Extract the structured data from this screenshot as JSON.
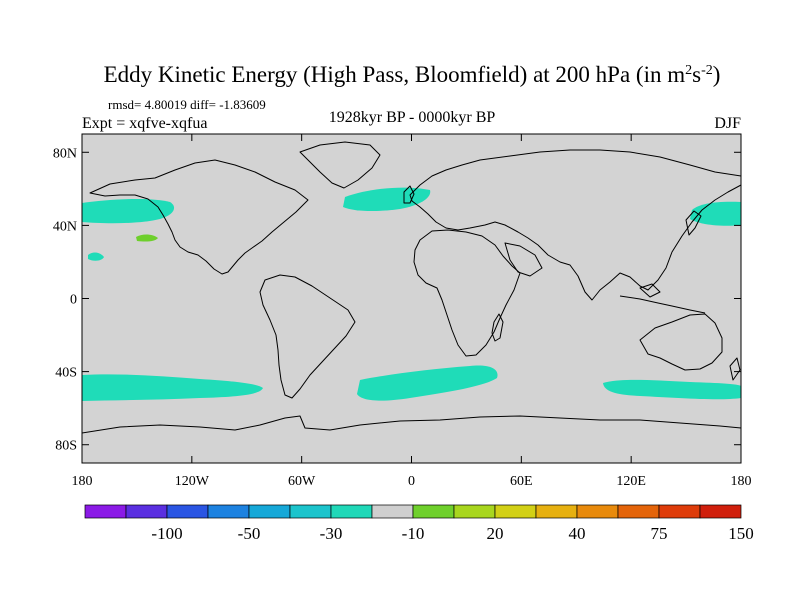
{
  "title": {
    "main": "Eddy Kinetic Energy (High Pass, Bloomfield) at 200 hPa (in m",
    "sup1": "2",
    "mid": "s",
    "sup2": "-2",
    "close": ")"
  },
  "stats": "rmsd= 4.80019 diff= -1.83609",
  "expt": "Expt = xqfve-xqfua",
  "period": "1928kyr BP - 0000kyr BP",
  "season": "DJF",
  "lat_ticks": [
    {
      "label": "80N",
      "lat": 80
    },
    {
      "label": "40N",
      "lat": 40
    },
    {
      "label": "0",
      "lat": 0
    },
    {
      "label": "40S",
      "lat": -40
    },
    {
      "label": "80S",
      "lat": -80
    }
  ],
  "lon_ticks": [
    {
      "label": "180",
      "lon": -180
    },
    {
      "label": "120W",
      "lon": -120
    },
    {
      "label": "60W",
      "lon": -60
    },
    {
      "label": "0",
      "lon": 0
    },
    {
      "label": "60E",
      "lon": 60
    },
    {
      "label": "120E",
      "lon": 120
    },
    {
      "label": "180",
      "lon": 180
    }
  ],
  "colorbar": {
    "colors": [
      "#8b1ae6",
      "#5a2fe0",
      "#2a55e3",
      "#1d82e0",
      "#16a8d8",
      "#1cc4cc",
      "#20d8b8",
      "#cfcfcf",
      "#6fd02c",
      "#a8d61e",
      "#d2d016",
      "#e6b010",
      "#e88a0c",
      "#e4640a",
      "#de3c0a",
      "#d01f0c"
    ],
    "labels": [
      {
        "text": "-100",
        "boundary": 2
      },
      {
        "text": "-50",
        "boundary": 4
      },
      {
        "text": "-30",
        "boundary": 6
      },
      {
        "text": "-10",
        "boundary": 8
      },
      {
        "text": "20",
        "boundary": 10
      },
      {
        "text": "40",
        "boundary": 12
      },
      {
        "text": "75",
        "boundary": 14
      },
      {
        "text": "150",
        "boundary": 16
      }
    ]
  },
  "map": {
    "ocean_color": "#d3d3d3",
    "negative_color": "#1fdcb8",
    "positive_color": "#6ecf2c",
    "line_color": "#000000"
  }
}
